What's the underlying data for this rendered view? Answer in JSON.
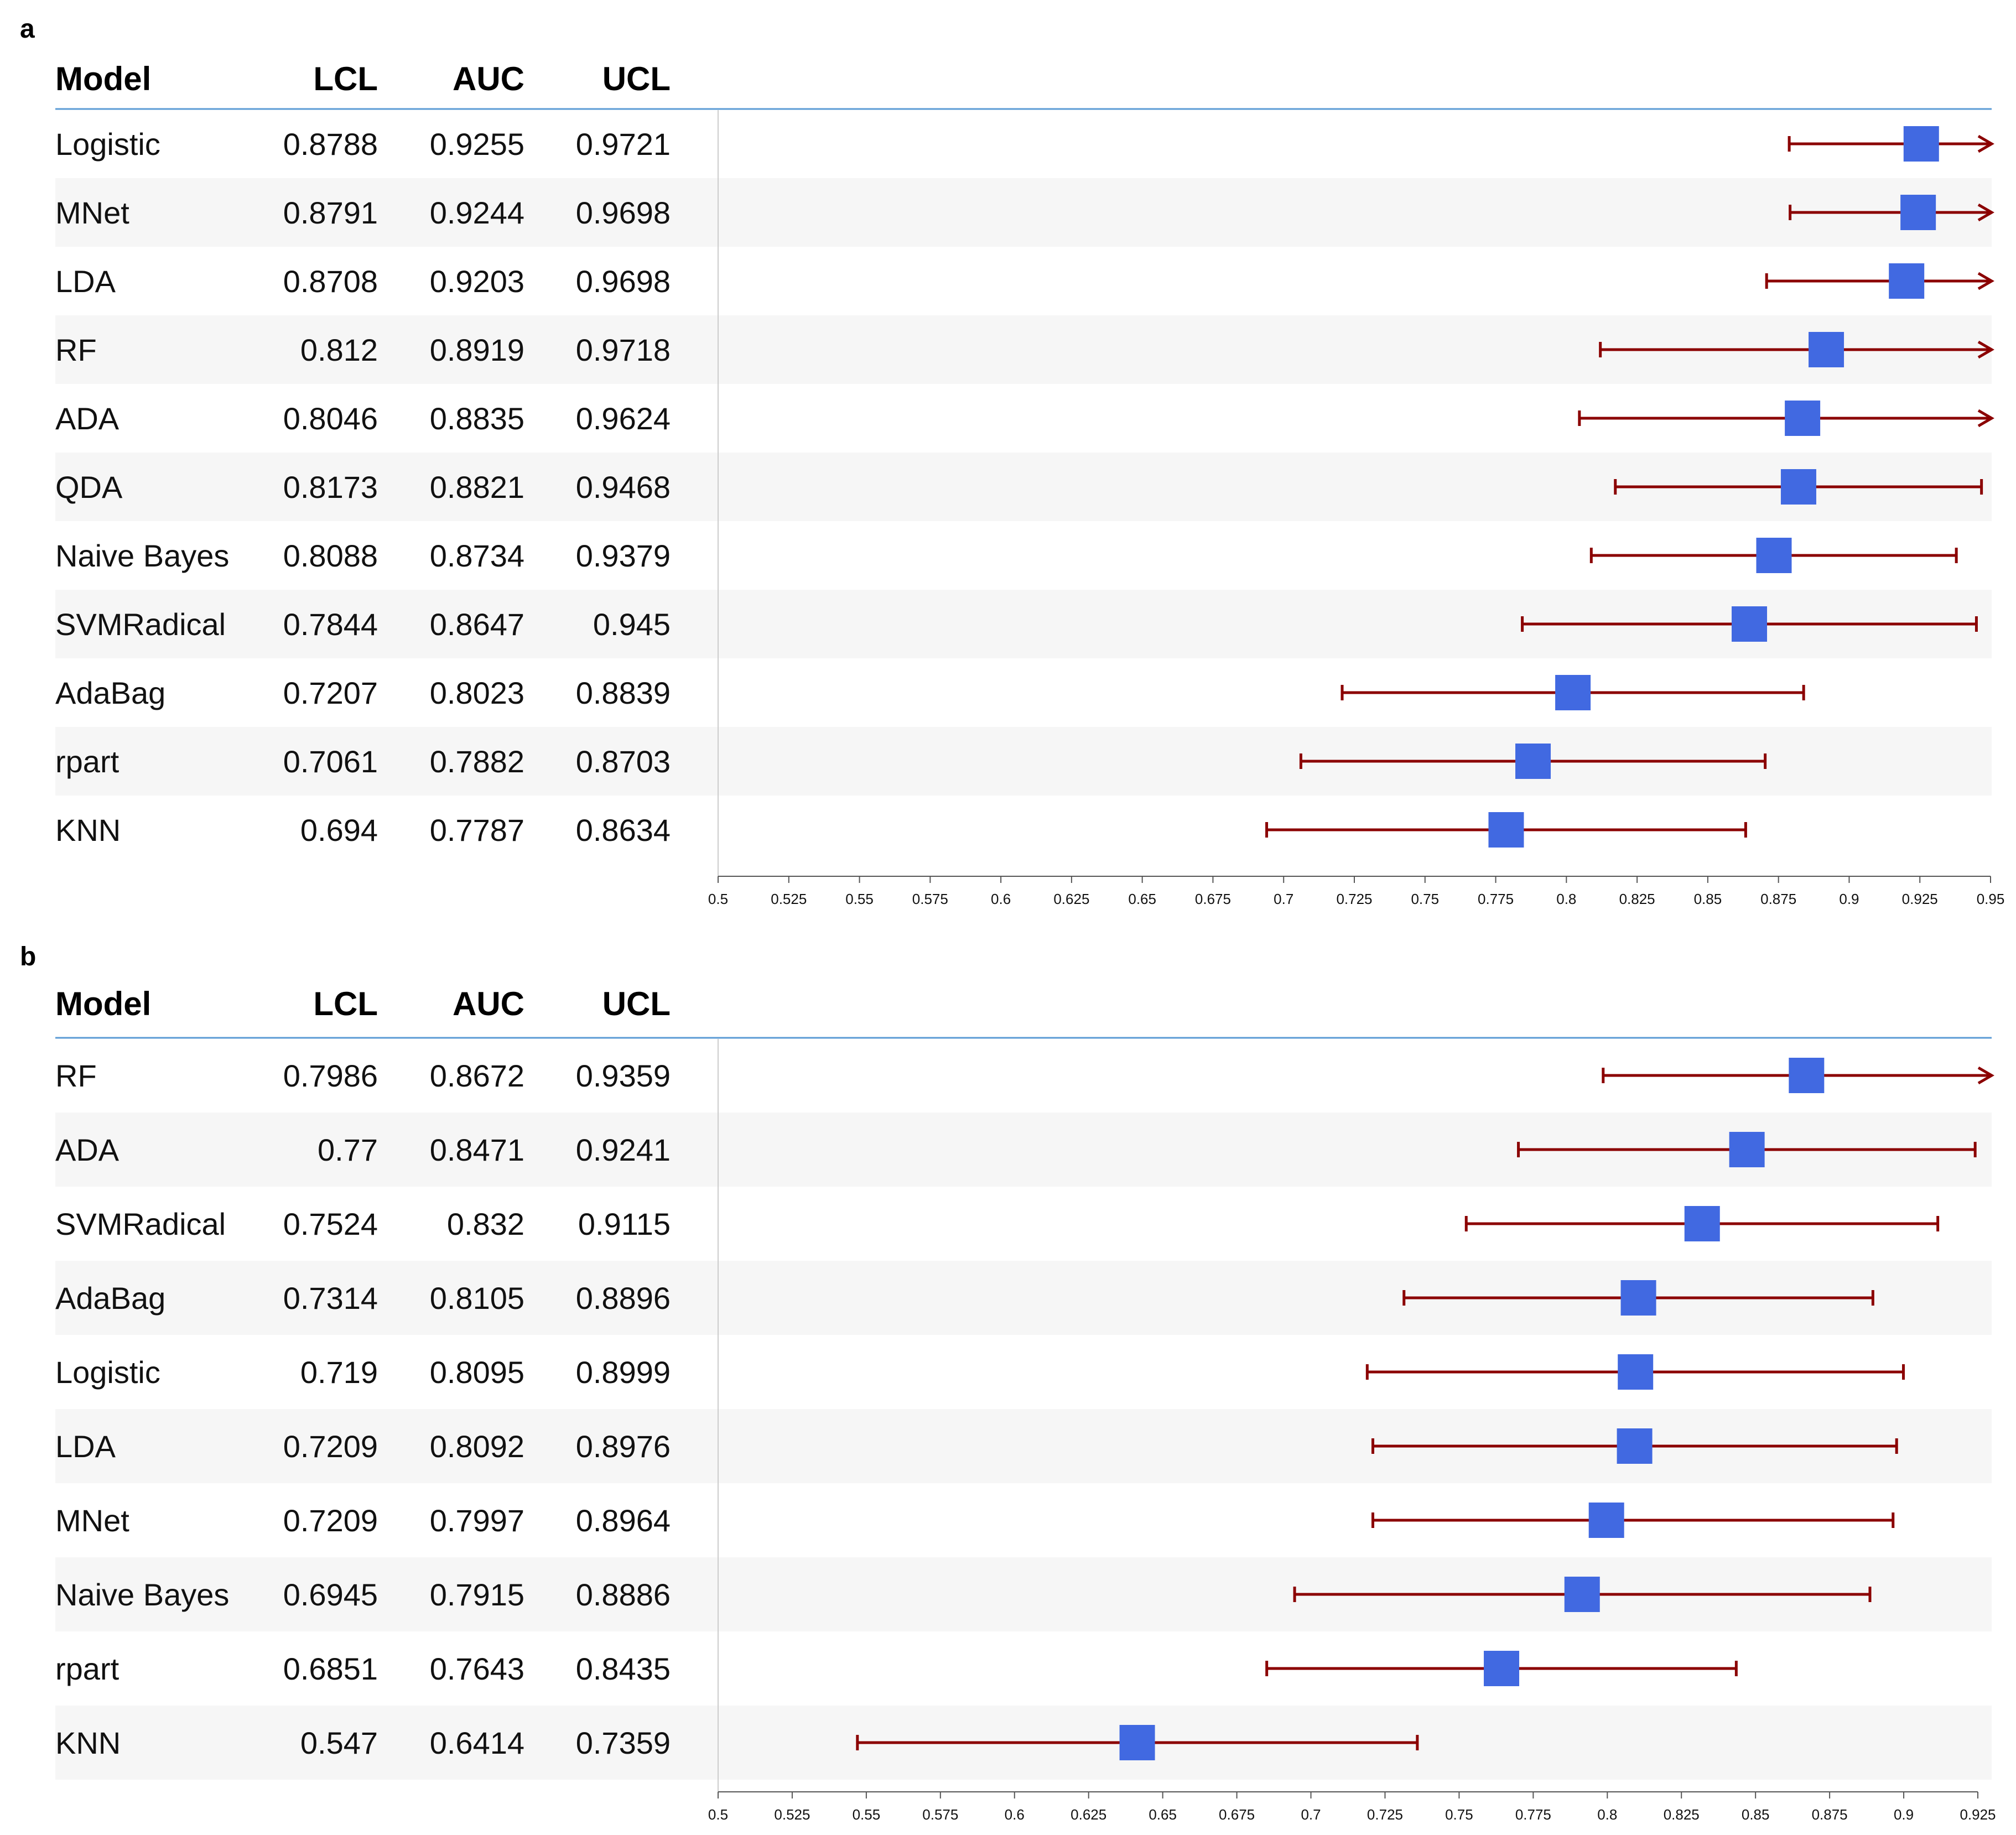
{
  "chart_data": [
    {
      "type": "forest",
      "panel_label": "a",
      "columns": {
        "model": "Model",
        "lcl": "LCL",
        "auc": "AUC",
        "ucl": "UCL"
      },
      "xlim": [
        0.5,
        0.95
      ],
      "xticks": [
        "0.5",
        "0.525",
        "0.55",
        "0.575",
        "0.6",
        "0.625",
        "0.65",
        "0.675",
        "0.7",
        "0.725",
        "0.75",
        "0.775",
        "0.8",
        "0.825",
        "0.85",
        "0.875",
        "0.9",
        "0.925",
        "0.95"
      ],
      "rows": [
        {
          "model": "Logistic",
          "lcl": "0.8788",
          "auc": "0.9255",
          "ucl": "0.9721",
          "clipped_right": true
        },
        {
          "model": "MNet",
          "lcl": "0.8791",
          "auc": "0.9244",
          "ucl": "0.9698",
          "clipped_right": true
        },
        {
          "model": "LDA",
          "lcl": "0.8708",
          "auc": "0.9203",
          "ucl": "0.9698",
          "clipped_right": true
        },
        {
          "model": "RF",
          "lcl": "0.812",
          "auc": "0.8919",
          "ucl": "0.9718",
          "clipped_right": true
        },
        {
          "model": "ADA",
          "lcl": "0.8046",
          "auc": "0.8835",
          "ucl": "0.9624",
          "clipped_right": true
        },
        {
          "model": "QDA",
          "lcl": "0.8173",
          "auc": "0.8821",
          "ucl": "0.9468",
          "clipped_right": false
        },
        {
          "model": "Naive Bayes",
          "lcl": "0.8088",
          "auc": "0.8734",
          "ucl": "0.9379",
          "clipped_right": false
        },
        {
          "model": "SVMRadical",
          "lcl": "0.7844",
          "auc": "0.8647",
          "ucl": "0.945",
          "clipped_right": false
        },
        {
          "model": "AdaBag",
          "lcl": "0.7207",
          "auc": "0.8023",
          "ucl": "0.8839",
          "clipped_right": false
        },
        {
          "model": "rpart",
          "lcl": "0.7061",
          "auc": "0.7882",
          "ucl": "0.8703",
          "clipped_right": false
        },
        {
          "model": "KNN",
          "lcl": "0.694",
          "auc": "0.7787",
          "ucl": "0.8634",
          "clipped_right": false
        }
      ]
    },
    {
      "type": "forest",
      "panel_label": "b",
      "columns": {
        "model": "Model",
        "lcl": "LCL",
        "auc": "AUC",
        "ucl": "UCL"
      },
      "xlim": [
        0.5,
        0.925
      ],
      "xticks": [
        "0.5",
        "0.525",
        "0.55",
        "0.575",
        "0.6",
        "0.625",
        "0.65",
        "0.675",
        "0.7",
        "0.725",
        "0.75",
        "0.775",
        "0.8",
        "0.825",
        "0.85",
        "0.875",
        "0.9",
        "0.925"
      ],
      "rows": [
        {
          "model": "RF",
          "lcl": "0.7986",
          "auc": "0.8672",
          "ucl": "0.9359",
          "clipped_right": true
        },
        {
          "model": "ADA",
          "lcl": "0.77",
          "auc": "0.8471",
          "ucl": "0.9241",
          "clipped_right": false
        },
        {
          "model": "SVMRadical",
          "lcl": "0.7524",
          "auc": "0.832",
          "ucl": "0.9115",
          "clipped_right": false
        },
        {
          "model": "AdaBag",
          "lcl": "0.7314",
          "auc": "0.8105",
          "ucl": "0.8896",
          "clipped_right": false
        },
        {
          "model": "Logistic",
          "lcl": "0.719",
          "auc": "0.8095",
          "ucl": "0.8999",
          "clipped_right": false
        },
        {
          "model": "LDA",
          "lcl": "0.7209",
          "auc": "0.8092",
          "ucl": "0.8976",
          "clipped_right": false
        },
        {
          "model": "MNet",
          "lcl": "0.7209",
          "auc": "0.7997",
          "ucl": "0.8964",
          "clipped_right": false
        },
        {
          "model": "Naive Bayes",
          "lcl": "0.6945",
          "auc": "0.7915",
          "ucl": "0.8886",
          "clipped_right": false
        },
        {
          "model": "rpart",
          "lcl": "0.6851",
          "auc": "0.7643",
          "ucl": "0.8435",
          "clipped_right": false
        },
        {
          "model": "KNN",
          "lcl": "0.547",
          "auc": "0.6414",
          "ucl": "0.7359",
          "clipped_right": false
        }
      ]
    }
  ],
  "colors": {
    "point": "#4169e1",
    "ci_line": "#8b0000",
    "header_rule": "#5b9bd5",
    "stripe": "#f6f6f6",
    "axis": "#555555"
  }
}
